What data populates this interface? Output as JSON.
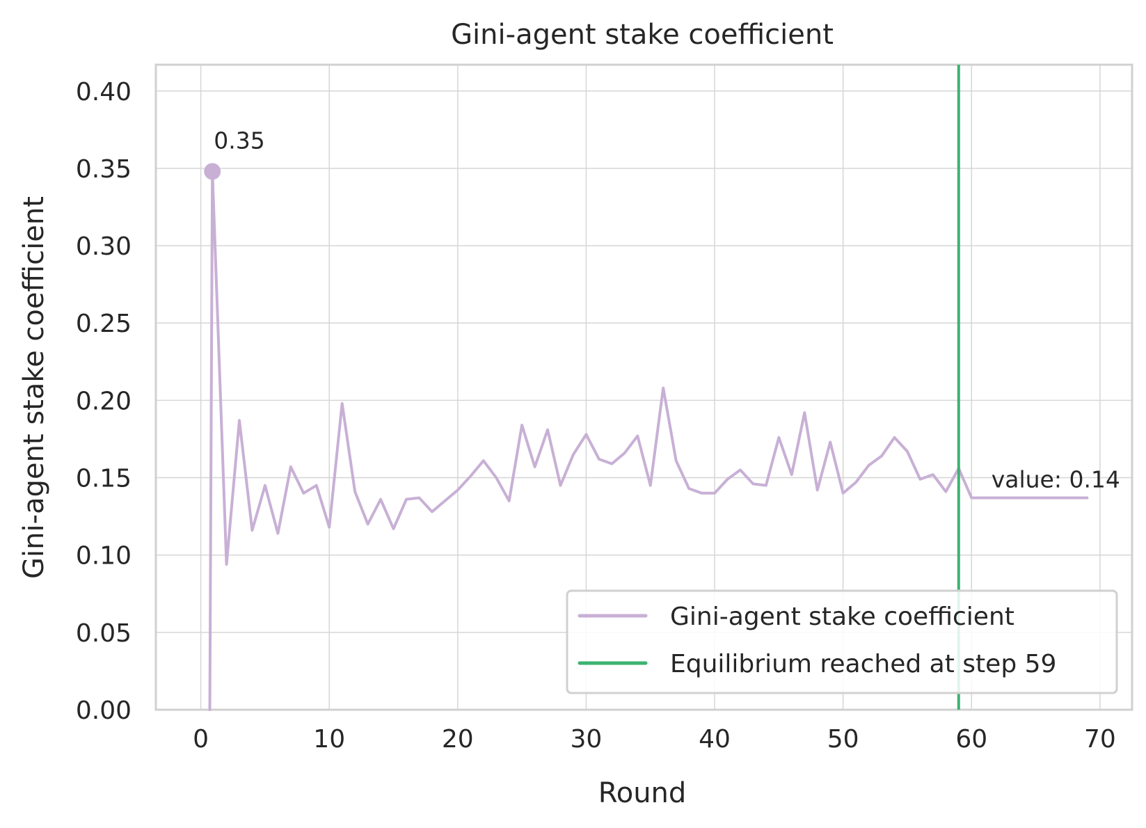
{
  "chart_data": {
    "type": "line",
    "title": "Gini-agent stake coefficient",
    "xlabel": "Round",
    "ylabel": "Gini-agent stake coefficient",
    "xlim": [
      -3.5,
      72.5
    ],
    "ylim": [
      0,
      0.417
    ],
    "x_ticks": [
      0,
      10,
      20,
      30,
      40,
      50,
      60,
      70
    ],
    "x_tick_labels": [
      "0",
      "10",
      "20",
      "30",
      "40",
      "50",
      "60",
      "70"
    ],
    "y_ticks": [
      0,
      0.05,
      0.1,
      0.15,
      0.2,
      0.25,
      0.3,
      0.35,
      0.4
    ],
    "y_tick_labels": [
      "0.00",
      "0.05",
      "0.10",
      "0.15",
      "0.20",
      "0.25",
      "0.30",
      "0.35",
      "0.40"
    ],
    "grid": true,
    "legend_position": "lower-right",
    "series": [
      {
        "name": "Gini-agent stake coefficient",
        "color": "#c8b0d5",
        "x": [
          0.7,
          0.9,
          2,
          3,
          4,
          5,
          6,
          7,
          8,
          9,
          10,
          11,
          12,
          13,
          14,
          15,
          16,
          17,
          18,
          19,
          20,
          21,
          22,
          23,
          24,
          25,
          26,
          27,
          28,
          29,
          30,
          31,
          32,
          33,
          34,
          35,
          36,
          37,
          38,
          39,
          40,
          41,
          42,
          43,
          44,
          45,
          46,
          47,
          48,
          49,
          50,
          51,
          52,
          53,
          54,
          55,
          56,
          57,
          58,
          59,
          60,
          61,
          62,
          63,
          64,
          65,
          66,
          67,
          68,
          69
        ],
        "y": [
          0.0,
          0.348,
          0.094,
          0.187,
          0.116,
          0.145,
          0.114,
          0.157,
          0.14,
          0.145,
          0.118,
          0.198,
          0.141,
          0.12,
          0.136,
          0.117,
          0.136,
          0.137,
          0.128,
          0.135,
          0.142,
          0.151,
          0.161,
          0.15,
          0.135,
          0.184,
          0.157,
          0.181,
          0.145,
          0.165,
          0.178,
          0.162,
          0.159,
          0.166,
          0.177,
          0.145,
          0.208,
          0.161,
          0.143,
          0.14,
          0.14,
          0.149,
          0.155,
          0.146,
          0.145,
          0.176,
          0.152,
          0.192,
          0.142,
          0.173,
          0.14,
          0.147,
          0.158,
          0.164,
          0.176,
          0.167,
          0.149,
          0.152,
          0.141,
          0.156,
          0.137,
          0.137,
          0.137,
          0.137,
          0.137,
          0.137,
          0.137,
          0.137,
          0.137,
          0.137
        ]
      },
      {
        "name": "Equilibrium reached at step 59",
        "color": "#3cb371",
        "type": "vline",
        "x": 59
      }
    ],
    "annotations": [
      {
        "text": "0.35",
        "x": 0.9,
        "y": 0.348,
        "marker": true
      },
      {
        "text": "value: 0.14",
        "x": 61,
        "y": 0.137
      }
    ]
  }
}
